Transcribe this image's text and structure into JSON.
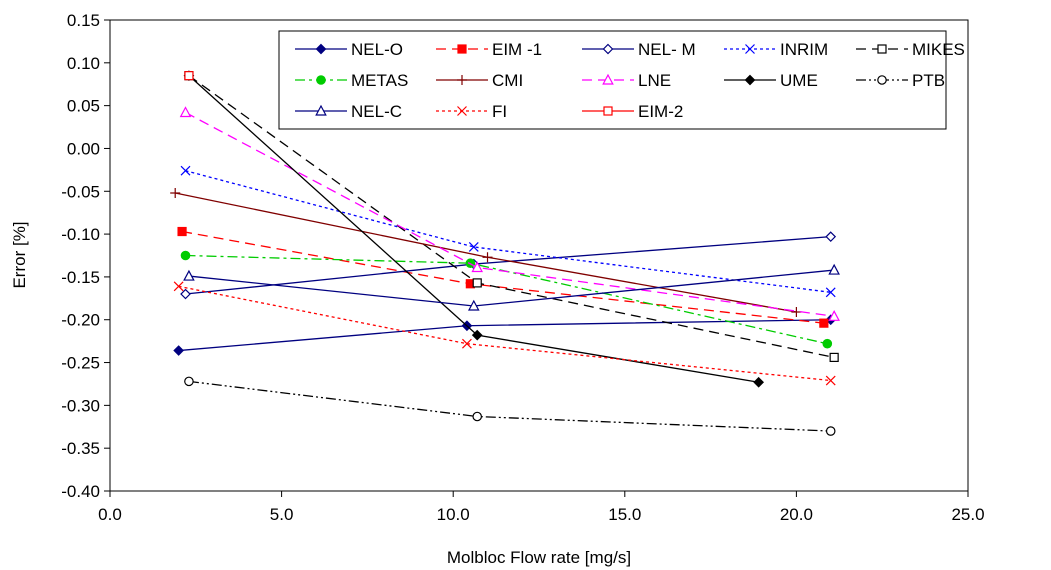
{
  "chart_data": {
    "type": "line",
    "title": "",
    "xlabel": "Molbloc Flow rate [mg/s]",
    "ylabel": "Error [%]",
    "xlim": [
      0,
      25
    ],
    "ylim": [
      -0.4,
      0.15
    ],
    "x_ticks": [
      "0.0",
      "5.0",
      "10.0",
      "15.0",
      "20.0",
      "25.0"
    ],
    "y_ticks": [
      "0.15",
      "0.10",
      "0.05",
      "0.00",
      "-0.05",
      "-0.10",
      "-0.15",
      "-0.20",
      "-0.25",
      "-0.30",
      "-0.35",
      "-0.40"
    ],
    "grid": "none",
    "legend": "top-right",
    "series": [
      {
        "name": "NEL-O",
        "color": "#000080",
        "dash": "",
        "marker": "diamond",
        "fill": true,
        "x": [
          2.0,
          10.4,
          21.0
        ],
        "y": [
          -0.236,
          -0.207,
          -0.2
        ]
      },
      {
        "name": "EIM -1",
        "color": "#ff0000",
        "dash": "10,6",
        "marker": "square",
        "fill": true,
        "x": [
          2.1,
          10.5,
          20.8
        ],
        "y": [
          -0.097,
          -0.158,
          -0.204
        ]
      },
      {
        "name": "NEL- M",
        "color": "#000080",
        "dash": "",
        "marker": "diamond",
        "fill": false,
        "x": [
          2.2,
          10.6,
          21.0
        ],
        "y": [
          -0.17,
          -0.135,
          -0.103
        ]
      },
      {
        "name": "INRIM",
        "color": "#0000ff",
        "dash": "3,3",
        "marker": "x",
        "fill": false,
        "x": [
          2.2,
          10.6,
          21.0
        ],
        "y": [
          -0.026,
          -0.115,
          -0.168
        ]
      },
      {
        "name": "MIKES",
        "color": "#000000",
        "dash": "10,6",
        "marker": "square",
        "fill": false,
        "x": [
          2.3,
          10.7,
          21.1
        ],
        "y": [
          0.085,
          -0.157,
          -0.244
        ]
      },
      {
        "name": "METAS",
        "color": "#00cc00",
        "dash": "10,4,3,4",
        "marker": "circle",
        "fill": true,
        "x": [
          2.2,
          10.5,
          20.9
        ],
        "y": [
          -0.125,
          -0.134,
          -0.228
        ]
      },
      {
        "name": "CMI",
        "color": "#800000",
        "dash": "",
        "marker": "plus",
        "fill": false,
        "x": [
          1.9,
          11.0,
          20.0
        ],
        "y": [
          -0.052,
          -0.127,
          -0.191
        ]
      },
      {
        "name": "LNE",
        "color": "#ff00ff",
        "dash": "10,6",
        "marker": "triangle",
        "fill": false,
        "x": [
          2.2,
          10.7,
          21.1
        ],
        "y": [
          0.042,
          -0.139,
          -0.196
        ]
      },
      {
        "name": "UME",
        "color": "#000000",
        "dash": "",
        "marker": "diamond",
        "fill": true,
        "x": [
          2.3,
          10.7,
          18.9
        ],
        "y": [
          0.085,
          -0.218,
          -0.273
        ]
      },
      {
        "name": "PTB",
        "color": "#000000",
        "dash": "10,3,2,3,2,3",
        "marker": "circle",
        "fill": false,
        "x": [
          2.3,
          10.7,
          21.0
        ],
        "y": [
          -0.272,
          -0.313,
          -0.33
        ]
      },
      {
        "name": "NEL-C",
        "color": "#000080",
        "dash": "",
        "marker": "triangle",
        "fill": false,
        "x": [
          2.3,
          10.6,
          21.1
        ],
        "y": [
          -0.149,
          -0.184,
          -0.142
        ]
      },
      {
        "name": "FI",
        "color": "#ff0000",
        "dash": "3,3",
        "marker": "x",
        "fill": false,
        "x": [
          2.0,
          10.4,
          21.0
        ],
        "y": [
          -0.161,
          -0.228,
          -0.271
        ]
      },
      {
        "name": "EIM-2",
        "color": "#ff0000",
        "dash": "",
        "marker": "square",
        "fill": false,
        "x": [
          2.3
        ],
        "y": [
          0.085
        ]
      }
    ]
  }
}
